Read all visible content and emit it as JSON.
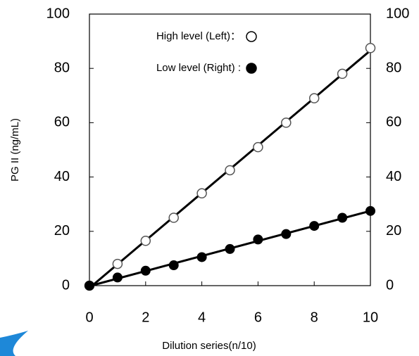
{
  "chart_data": {
    "type": "scatter",
    "x_label": "Dilution series(n/10)",
    "y_label": "PG II (ng/mL)",
    "x": [
      0,
      1,
      2,
      3,
      4,
      5,
      6,
      7,
      8,
      9,
      10
    ],
    "series": [
      {
        "name": "High level (Left)：",
        "color": "#555555",
        "marker": "open",
        "axis": "y",
        "values": [
          0,
          8,
          16.5,
          25,
          34,
          42.5,
          51,
          60,
          69,
          78,
          87.5
        ]
      },
      {
        "name": "Low level (Right) :",
        "color": "#000000",
        "marker": "filled",
        "axis": "y2",
        "values": [
          0,
          3,
          5.5,
          7.5,
          10.5,
          13.5,
          17,
          19,
          22,
          25,
          27.5
        ]
      }
    ],
    "xlim": [
      0,
      10
    ],
    "xticks": [
      0,
      2,
      4,
      6,
      8,
      10
    ],
    "ylim": [
      0,
      100
    ],
    "yticks": [
      0,
      20,
      40,
      60,
      80,
      100
    ],
    "y2lim": [
      0,
      100
    ],
    "y2ticks": [
      0,
      20,
      40,
      60,
      80,
      100
    ],
    "trend_lines": true
  }
}
